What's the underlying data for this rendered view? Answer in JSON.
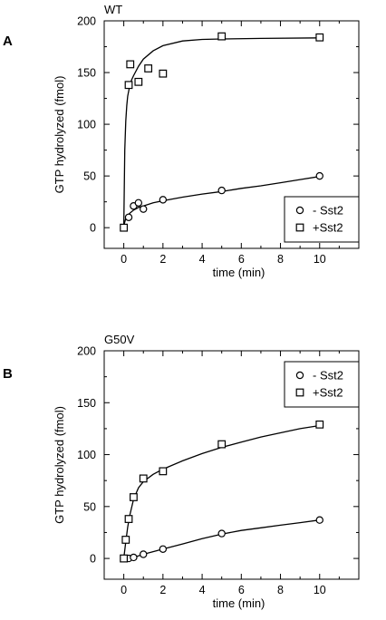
{
  "chart_data": [
    {
      "type": "scatter",
      "panel_letter": "A",
      "title": "WT",
      "xlabel": "time (min)",
      "ylabel": "GTP hydrolyzed (fmol)",
      "xlim": [
        -1,
        12
      ],
      "ylim": [
        -20,
        200
      ],
      "x_ticks": [
        "0",
        "2",
        "4",
        "6",
        "8",
        "10"
      ],
      "y_ticks": [
        "0",
        "50",
        "100",
        "150",
        "200"
      ],
      "legend": {
        "position": "lower-right",
        "entries": [
          "- Sst2",
          "+Sst2"
        ]
      },
      "series": [
        {
          "name": "- Sst2",
          "marker": "circle",
          "points": [
            [
              0,
              0
            ],
            [
              0.25,
              10
            ],
            [
              0.5,
              21
            ],
            [
              0.75,
              24
            ],
            [
              1,
              18
            ],
            [
              2,
              27
            ],
            [
              5,
              36
            ],
            [
              10,
              50
            ]
          ],
          "fit": [
            [
              0,
              2
            ],
            [
              0.1,
              9
            ],
            [
              0.25,
              13
            ],
            [
              0.5,
              17
            ],
            [
              0.75,
              19.5
            ],
            [
              1,
              21
            ],
            [
              1.5,
              24
            ],
            [
              2,
              26
            ],
            [
              3,
              29.5
            ],
            [
              4,
              32.5
            ],
            [
              5,
              35
            ],
            [
              6,
              38
            ],
            [
              7,
              40.5
            ],
            [
              8,
              43.5
            ],
            [
              9,
              46.5
            ],
            [
              10,
              49.5
            ]
          ]
        },
        {
          "name": "+Sst2",
          "marker": "square",
          "points": [
            [
              0,
              0
            ],
            [
              0.25,
              138
            ],
            [
              0.33,
              158
            ],
            [
              0.75,
              141
            ],
            [
              1.25,
              154
            ],
            [
              2,
              149
            ],
            [
              5,
              185
            ],
            [
              10,
              184
            ]
          ],
          "fit": [
            [
              0,
              0
            ],
            [
              0.05,
              75
            ],
            [
              0.1,
              103
            ],
            [
              0.15,
              118
            ],
            [
              0.2,
              127
            ],
            [
              0.3,
              137
            ],
            [
              0.4,
              143
            ],
            [
              0.5,
              147
            ],
            [
              0.75,
              156
            ],
            [
              1,
              163
            ],
            [
              1.5,
              171
            ],
            [
              2,
              176
            ],
            [
              3,
              180.5
            ],
            [
              4,
              182
            ],
            [
              5,
              182.5
            ],
            [
              7,
              183
            ],
            [
              10,
              183.5
            ]
          ]
        }
      ]
    },
    {
      "type": "scatter",
      "panel_letter": "B",
      "title": "G50V",
      "xlabel": "time (min)",
      "ylabel": "GTP hydrolyzed (fmol)",
      "xlim": [
        -1,
        12
      ],
      "ylim": [
        -20,
        200
      ],
      "x_ticks": [
        "0",
        "2",
        "4",
        "6",
        "8",
        "10"
      ],
      "y_ticks": [
        "0",
        "50",
        "100",
        "150",
        "200"
      ],
      "legend": {
        "position": "top-right",
        "entries": [
          "- Sst2",
          "+Sst2"
        ]
      },
      "series": [
        {
          "name": "- Sst2",
          "marker": "circle",
          "points": [
            [
              0,
              0
            ],
            [
              0.25,
              0
            ],
            [
              0.5,
              1
            ],
            [
              1,
              4
            ],
            [
              2,
              9
            ],
            [
              5,
              24
            ],
            [
              10,
              37
            ]
          ],
          "fit": [
            [
              0,
              0
            ],
            [
              0.25,
              0.3
            ],
            [
              0.5,
              1
            ],
            [
              0.75,
              2.5
            ],
            [
              1,
              4
            ],
            [
              1.5,
              6.5
            ],
            [
              2,
              9
            ],
            [
              3,
              14
            ],
            [
              4,
              19
            ],
            [
              5,
              23.5
            ],
            [
              6,
              27
            ],
            [
              7,
              29.5
            ],
            [
              8,
              32
            ],
            [
              9,
              34.5
            ],
            [
              10,
              37
            ]
          ]
        },
        {
          "name": "+Sst2",
          "marker": "square",
          "points": [
            [
              0,
              0
            ],
            [
              0.1,
              18
            ],
            [
              0.25,
              38
            ],
            [
              0.5,
              59
            ],
            [
              1,
              77
            ],
            [
              2,
              84
            ],
            [
              5,
              110
            ],
            [
              10,
              129
            ]
          ],
          "fit": [
            [
              0,
              0
            ],
            [
              0.1,
              16
            ],
            [
              0.2,
              30
            ],
            [
              0.3,
              41
            ],
            [
              0.5,
              57
            ],
            [
              0.75,
              68
            ],
            [
              1,
              74
            ],
            [
              1.5,
              81
            ],
            [
              2,
              86
            ],
            [
              3,
              94
            ],
            [
              4,
              101
            ],
            [
              5,
              107
            ],
            [
              6,
              112
            ],
            [
              7,
              117
            ],
            [
              8,
              121
            ],
            [
              9,
              125
            ],
            [
              10,
              128
            ]
          ]
        }
      ]
    }
  ]
}
